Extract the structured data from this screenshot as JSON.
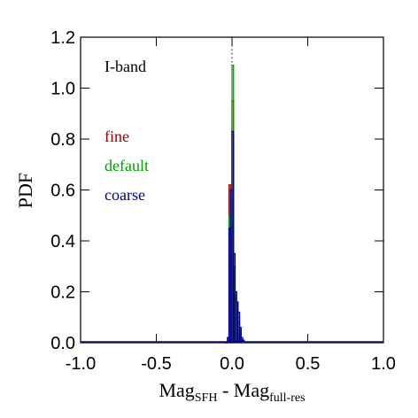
{
  "chart_data": {
    "type": "histogram",
    "xlabel": [
      "Mag",
      "SFH",
      " - Mag",
      "full-res"
    ],
    "ylabel": "PDF",
    "annotation": "I-band",
    "vline": 0,
    "bins": [
      -0.05,
      -0.04,
      -0.03,
      -0.02,
      -0.01,
      0,
      0.01,
      0.02,
      0.03,
      0.04,
      0.05,
      0.06,
      0.07,
      0.08
    ],
    "series": [
      {
        "name": "fine",
        "color": "#a00000",
        "values": [
          0,
          0,
          0.02,
          0.62,
          0.45,
          0.95,
          0.3,
          0.2,
          0.15,
          0.08,
          0.03,
          0.01,
          0
        ]
      },
      {
        "name": "default",
        "color": "#00a000",
        "values": [
          0,
          0,
          0.01,
          0.5,
          0.55,
          1.09,
          0.3,
          0.18,
          0.14,
          0.1,
          0.05,
          0.02,
          0
        ]
      },
      {
        "name": "coarse",
        "color": "#00008c",
        "values": [
          0,
          0,
          0.02,
          0.45,
          0.6,
          0.83,
          0.35,
          0.2,
          0.16,
          0.12,
          0.06,
          0.02,
          0.01
        ]
      }
    ],
    "xlim": [
      -1,
      1
    ],
    "ylim": [
      0,
      1.2
    ],
    "xticks": [
      {
        "value": -1,
        "label": "-1.0"
      },
      {
        "value": -0.5,
        "label": "-0.5"
      },
      {
        "value": 0,
        "label": "0.0"
      },
      {
        "value": 0.5,
        "label": "0.5"
      },
      {
        "value": 1,
        "label": "1.0"
      }
    ],
    "yticks": [
      {
        "value": 0,
        "label": "0.0"
      },
      {
        "value": 0.2,
        "label": "0.2"
      },
      {
        "value": 0.4,
        "label": "0.4"
      },
      {
        "value": 0.6,
        "label": "0.6"
      },
      {
        "value": 0.8,
        "label": "0.8"
      },
      {
        "value": 1,
        "label": "1.0"
      },
      {
        "value": 1.2,
        "label": "1.2"
      }
    ]
  }
}
